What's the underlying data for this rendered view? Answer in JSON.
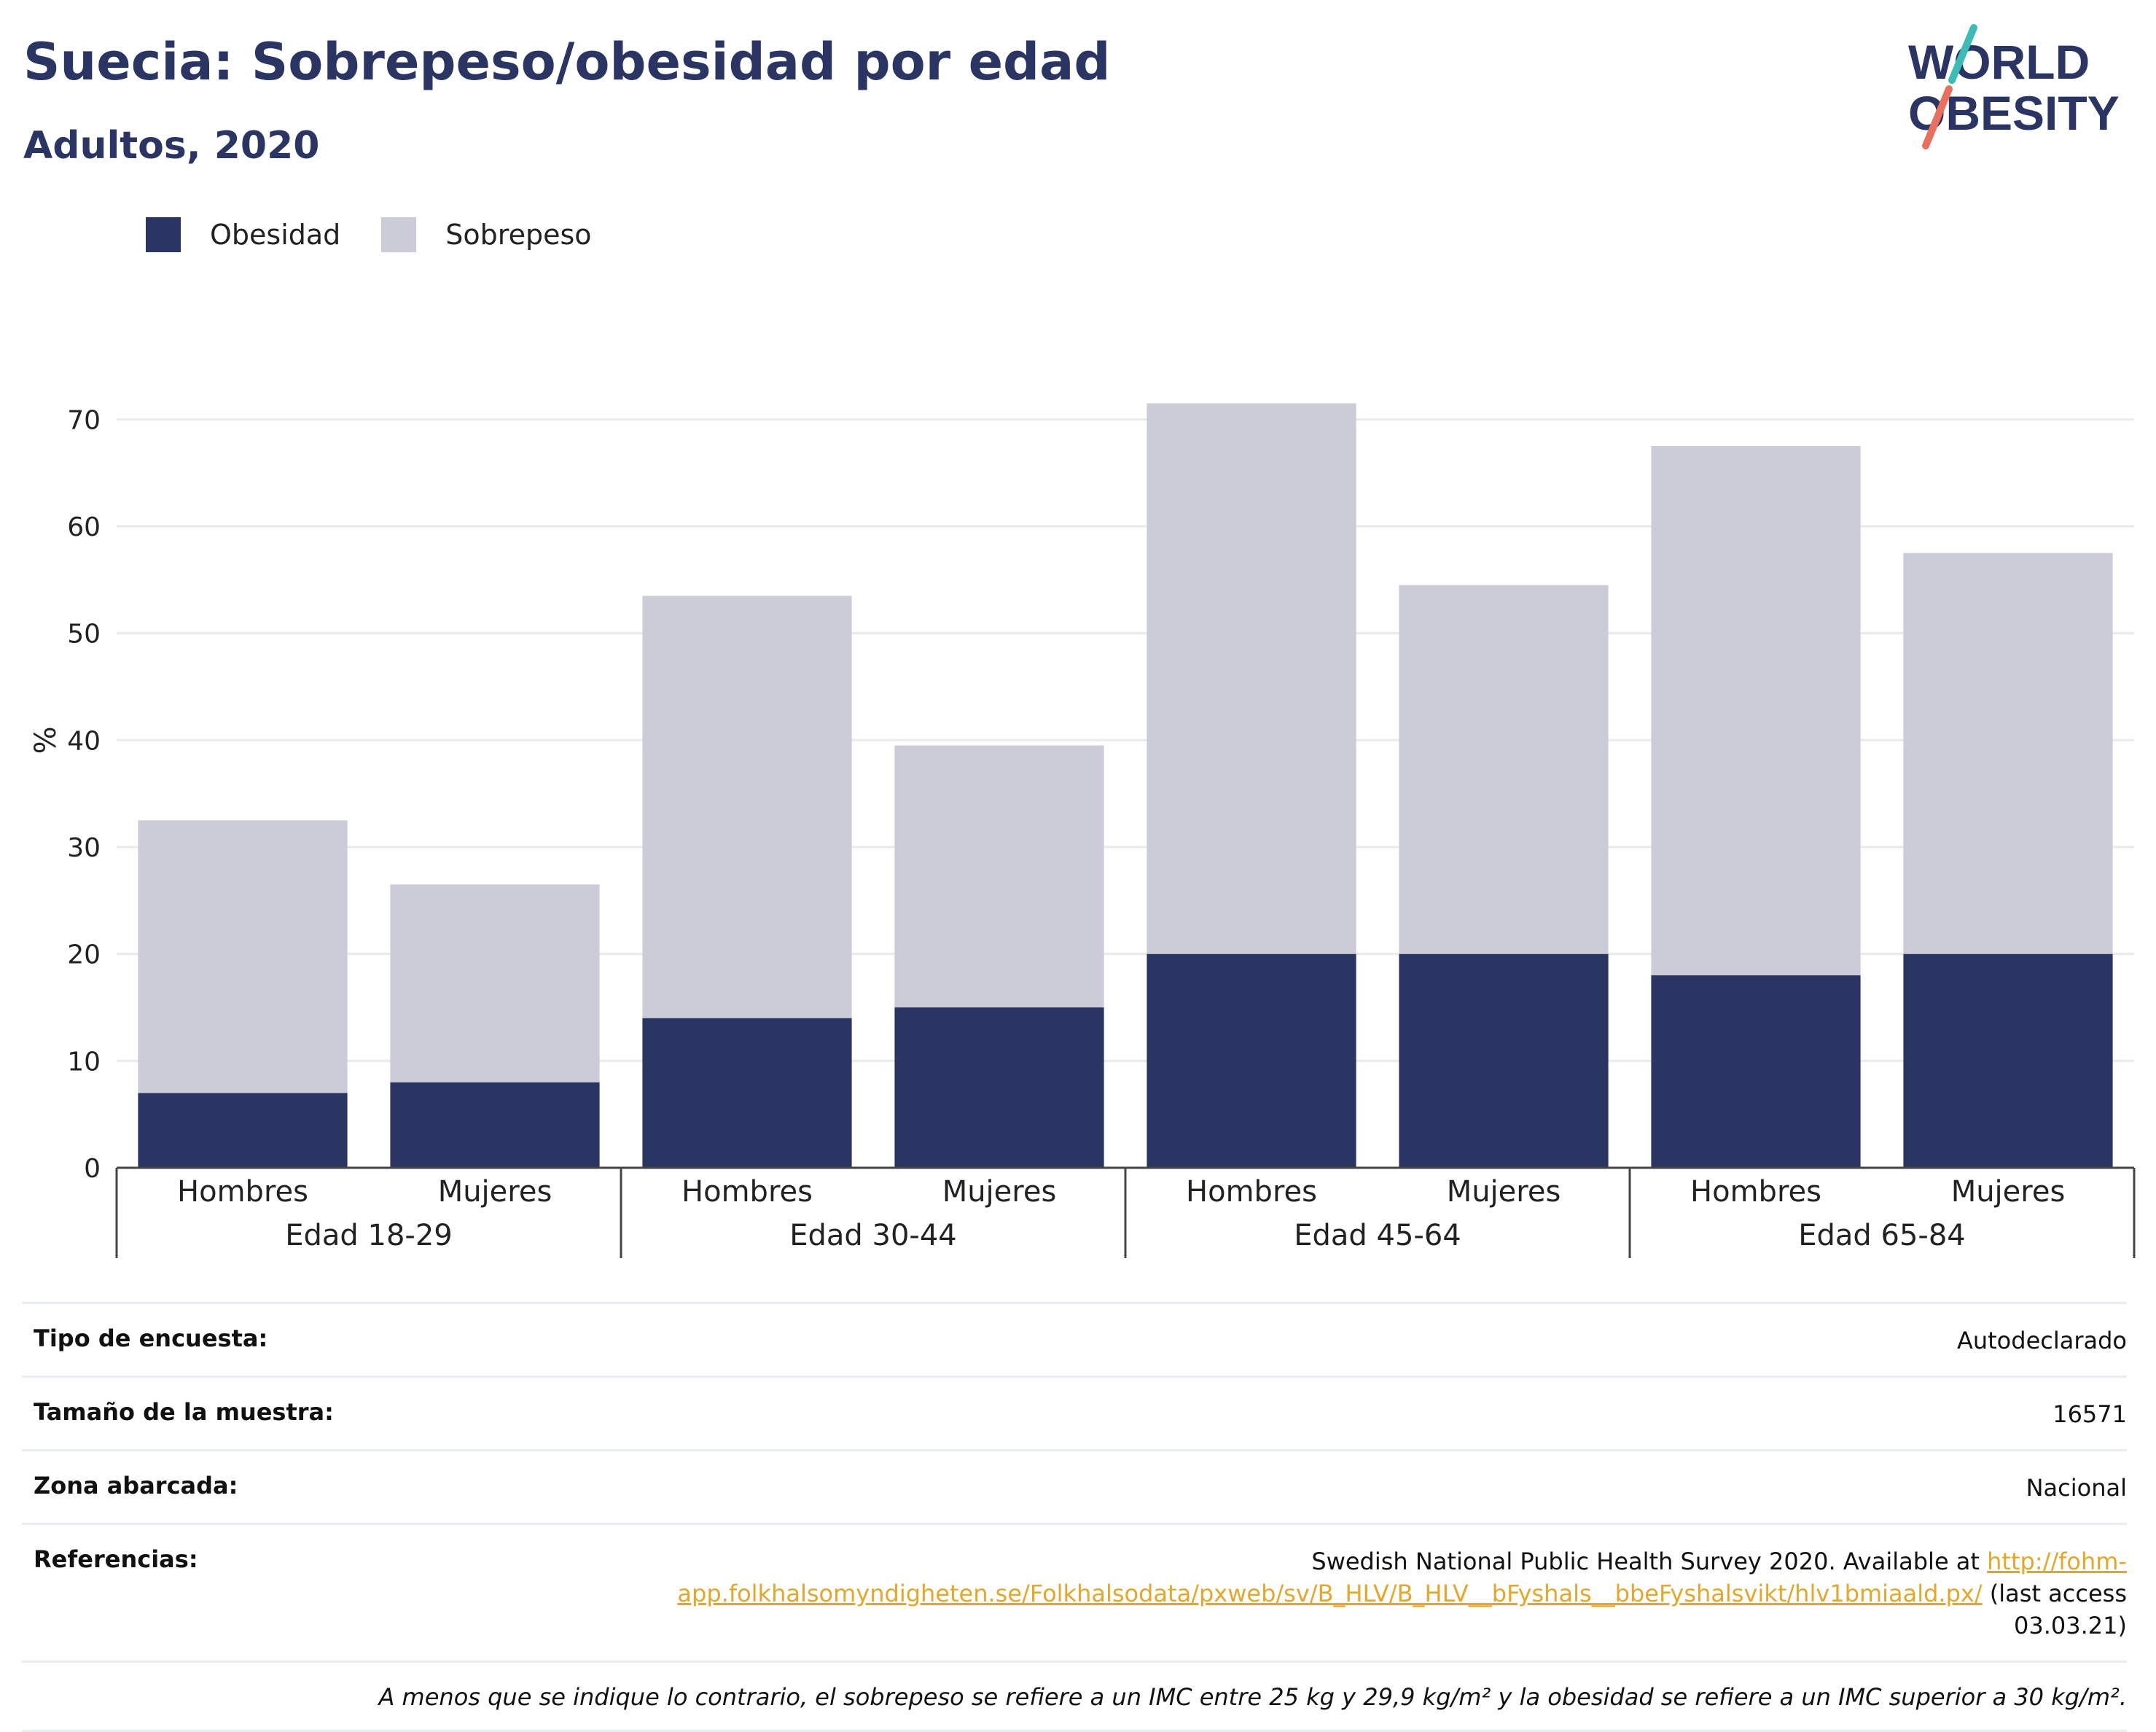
{
  "header": {
    "title": "Suecia: Sobrepeso/obesidad por edad",
    "subtitle": "Adultos, 2020"
  },
  "logo": {
    "line1": "WORLD",
    "line2": "OBESITY",
    "accent_teal": "#3bbdb5",
    "accent_coral": "#e8705f",
    "text_color": "#2a3563"
  },
  "legend": {
    "items": [
      {
        "label": "Obesidad",
        "color": "#2a3563"
      },
      {
        "label": "Sobrepeso",
        "color": "#cbccd8"
      }
    ]
  },
  "chart_data": {
    "type": "bar",
    "stacked": true,
    "ylabel": "%",
    "ylim": [
      0,
      75
    ],
    "yticks": [
      0,
      10,
      20,
      30,
      40,
      50,
      60,
      70
    ],
    "grid": true,
    "legend_position": "top-left",
    "groups": [
      "Edad 18-29",
      "Edad 30-44",
      "Edad 45-64",
      "Edad 65-84"
    ],
    "subcategories": [
      "Hombres",
      "Mujeres"
    ],
    "categories": [
      "Hombres",
      "Mujeres",
      "Hombres",
      "Mujeres",
      "Hombres",
      "Mujeres",
      "Hombres",
      "Mujeres"
    ],
    "series": [
      {
        "name": "Obesidad",
        "color": "#2a3563",
        "values": [
          7,
          8,
          14,
          15,
          20,
          20,
          18,
          20
        ]
      },
      {
        "name": "Sobrepeso",
        "color": "#cbccd8",
        "values": [
          25.5,
          18.5,
          39.5,
          24.5,
          51.5,
          34.5,
          49.5,
          37.5
        ]
      }
    ],
    "totals": [
      32.5,
      26.5,
      53.5,
      39.5,
      71.5,
      54.5,
      67.5,
      57.5
    ]
  },
  "info": {
    "survey_type": {
      "label": "Tipo de encuesta:",
      "value": "Autodeclarado"
    },
    "sample_size": {
      "label": "Tamaño de la muestra:",
      "value": "16571"
    },
    "area": {
      "label": "Zona abarcada:",
      "value": "Nacional"
    },
    "references": {
      "label": "Referencias:",
      "text_before": "Swedish National Public Health Survey 2020. Available at ",
      "link": "http://fohm-app.folkhalsomyndigheten.se/Folkhalsodata/pxweb/sv/B_HLV/B_HLV__bFyshals__bbeFyshalsvikt/hlv1bmiaald.px/",
      "text_after": " (last access 03.03.21)"
    },
    "note": "A menos que se indique lo contrario, el sobrepeso se refiere a un IMC entre 25 kg y 29,9 kg/m² y la obesidad se refiere a un IMC superior a 30 kg/m²."
  }
}
